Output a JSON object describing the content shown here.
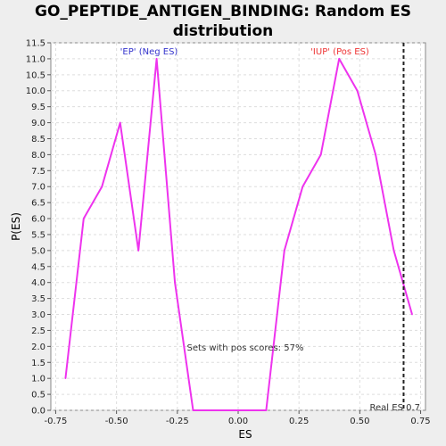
{
  "chart_data": {
    "type": "line",
    "title_lines": [
      "GO_PEPTIDE_ANTIGEN_BINDING: Random ES",
      "distribution"
    ],
    "xlabel": "ES",
    "ylabel": "P(ES)",
    "xlim": [
      -0.77,
      0.77
    ],
    "ylim": [
      0.0,
      11.5
    ],
    "x_ticks": [
      "-0.75",
      "-0.50",
      "-0.25",
      "0.00",
      "0.25",
      "0.50",
      "0.75"
    ],
    "x_tick_values": [
      -0.75,
      -0.5,
      -0.25,
      0.0,
      0.25,
      0.5,
      0.75
    ],
    "y_ticks": [
      "0.0",
      "0.5",
      "1.0",
      "1.5",
      "2.0",
      "2.5",
      "3.0",
      "3.5",
      "4.0",
      "4.5",
      "5.0",
      "5.5",
      "6.0",
      "6.5",
      "7.0",
      "7.5",
      "8.0",
      "8.5",
      "9.0",
      "9.5",
      "10.0",
      "10.5",
      "11.0",
      "11.5"
    ],
    "y_tick_values": [
      0.0,
      0.5,
      1.0,
      1.5,
      2.0,
      2.5,
      3.0,
      3.5,
      4.0,
      4.5,
      5.0,
      5.5,
      6.0,
      6.5,
      7.0,
      7.5,
      8.0,
      8.5,
      9.0,
      9.5,
      10.0,
      10.5,
      11.0,
      11.5
    ],
    "grid": true,
    "series": [
      {
        "color": "#ee33ee",
        "x": [
          -0.71,
          -0.635,
          -0.56,
          -0.485,
          -0.41,
          -0.335,
          -0.26,
          -0.185,
          -0.11,
          -0.035,
          0.04,
          0.115,
          0.19,
          0.265,
          0.34,
          0.415,
          0.49,
          0.565,
          0.64,
          0.715
        ],
        "y": [
          1,
          6,
          7,
          9,
          5,
          11,
          4,
          0,
          0,
          0,
          0,
          0,
          5,
          7,
          8,
          11,
          10,
          8,
          5,
          3
        ]
      }
    ],
    "real_es": 0.68,
    "annotations": {
      "neg_label": "'EP' (Neg ES)",
      "pos_label": "'IUP' (Pos ES)",
      "pos_scores": "Sets with pos scores: 57%",
      "real_es_label": "Real ES 0.7"
    },
    "colors": {
      "neg_label": "#3333cc",
      "pos_label": "#ee3333",
      "plot_bg": "#ffffff",
      "grid": "#dddddd"
    }
  }
}
